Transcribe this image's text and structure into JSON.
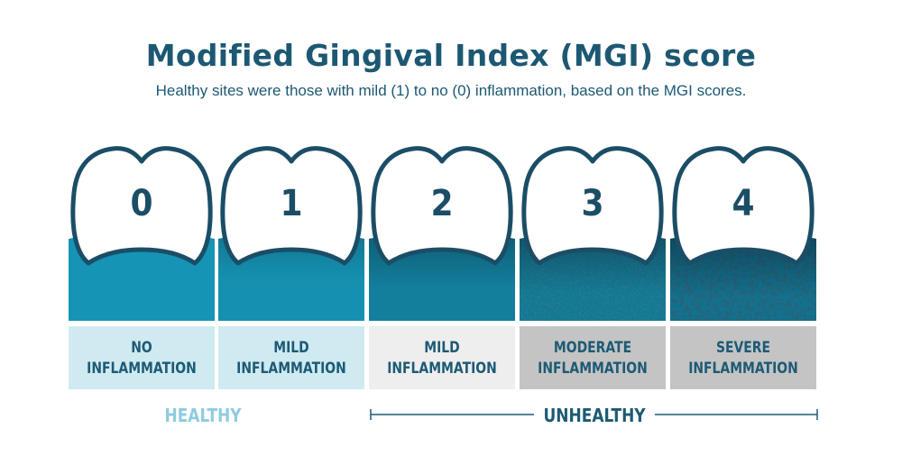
{
  "title": "Modified Gingival Index (MGI) score",
  "subtitle": "Healthy sites were those with mild (1) to no (0) inflammation, based on the MGI scores.",
  "scores": [
    {
      "score": "0",
      "line1": "NO",
      "line2": "INFLAMMATION",
      "gum_color": "#1594b6",
      "label_bg": "#cfeaf1",
      "label_color": "#1d5a75"
    },
    {
      "score": "1",
      "line1": "MILD",
      "line2": "INFLAMMATION",
      "gum_color": "#1590b0",
      "label_bg": "#cfeaf1",
      "label_color": "#1d5a75"
    },
    {
      "score": "2",
      "line1": "MILD",
      "line2": "INFLAMMATION",
      "gum_color": "#137f9c",
      "label_bg": "#eeeeee",
      "label_color": "#1d5a75"
    },
    {
      "score": "3",
      "line1": "MODERATE",
      "line2": "INFLAMMATION",
      "gum_color": "#137995",
      "label_bg": "#c4c4c4",
      "label_color": "#1d5a75"
    },
    {
      "score": "4",
      "line1": "SEVERE",
      "line2": "INFLAMMATION",
      "gum_color": "#117290",
      "label_bg": "#c4c4c4",
      "label_color": "#1d5a75"
    }
  ],
  "groups": {
    "healthy": "HEALTHY",
    "unhealthy": "UNHEALTHY",
    "healthy_color": "#8fcbe0",
    "unhealthy_color": "#1d5a75"
  }
}
